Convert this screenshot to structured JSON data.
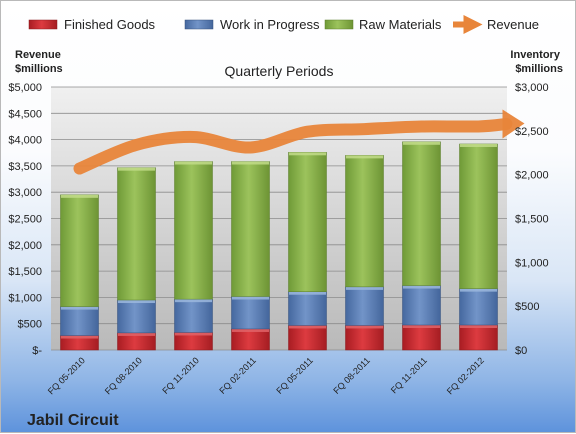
{
  "chart_data": {
    "type": "bar",
    "stacked": true,
    "title": "Quarterly Periods",
    "company": "Jabil Circuit",
    "left_axis_label": "Revenue\n$millions",
    "right_axis_label": "Inventory\n$millions",
    "left_ticks": [
      "$-",
      "$500",
      "$1,000",
      "$1,500",
      "$2,000",
      "$2,500",
      "$3,000",
      "$3,500",
      "$4,000",
      "$4,500",
      "$5,000"
    ],
    "right_ticks": [
      "$0",
      "$500",
      "$1,000",
      "$1,500",
      "$2,000",
      "$2,500",
      "$3,000"
    ],
    "left_ylim": [
      0,
      5000
    ],
    "right_ylim": [
      0,
      3000
    ],
    "categories": [
      "FQ 05-2010",
      "FQ 08-2010",
      "FQ 11-2010",
      "FQ 02-2011",
      "FQ 05-2011",
      "FQ 08-2011",
      "FQ 11-2011",
      "FQ 02-2012"
    ],
    "series": [
      {
        "name": "Finished Goods",
        "axis": "right",
        "color": "#c0282d",
        "values": [
          165,
          195,
          200,
          240,
          280,
          280,
          285,
          285
        ]
      },
      {
        "name": "Work in Progress",
        "axis": "right",
        "color": "#5b7fb6",
        "values": [
          330,
          375,
          380,
          370,
          385,
          440,
          450,
          415
        ]
      },
      {
        "name": "Raw Materials",
        "axis": "right",
        "color": "#8db34a",
        "values": [
          1275,
          1510,
          1570,
          1540,
          1590,
          1500,
          1640,
          1650
        ]
      },
      {
        "name": "Revenue",
        "axis": "left",
        "type": "line",
        "color": "#e8853a",
        "values": [
          3450,
          3900,
          4050,
          3850,
          4150,
          4200,
          4250,
          4250
        ]
      }
    ],
    "grid": true,
    "legend_position": "top"
  }
}
